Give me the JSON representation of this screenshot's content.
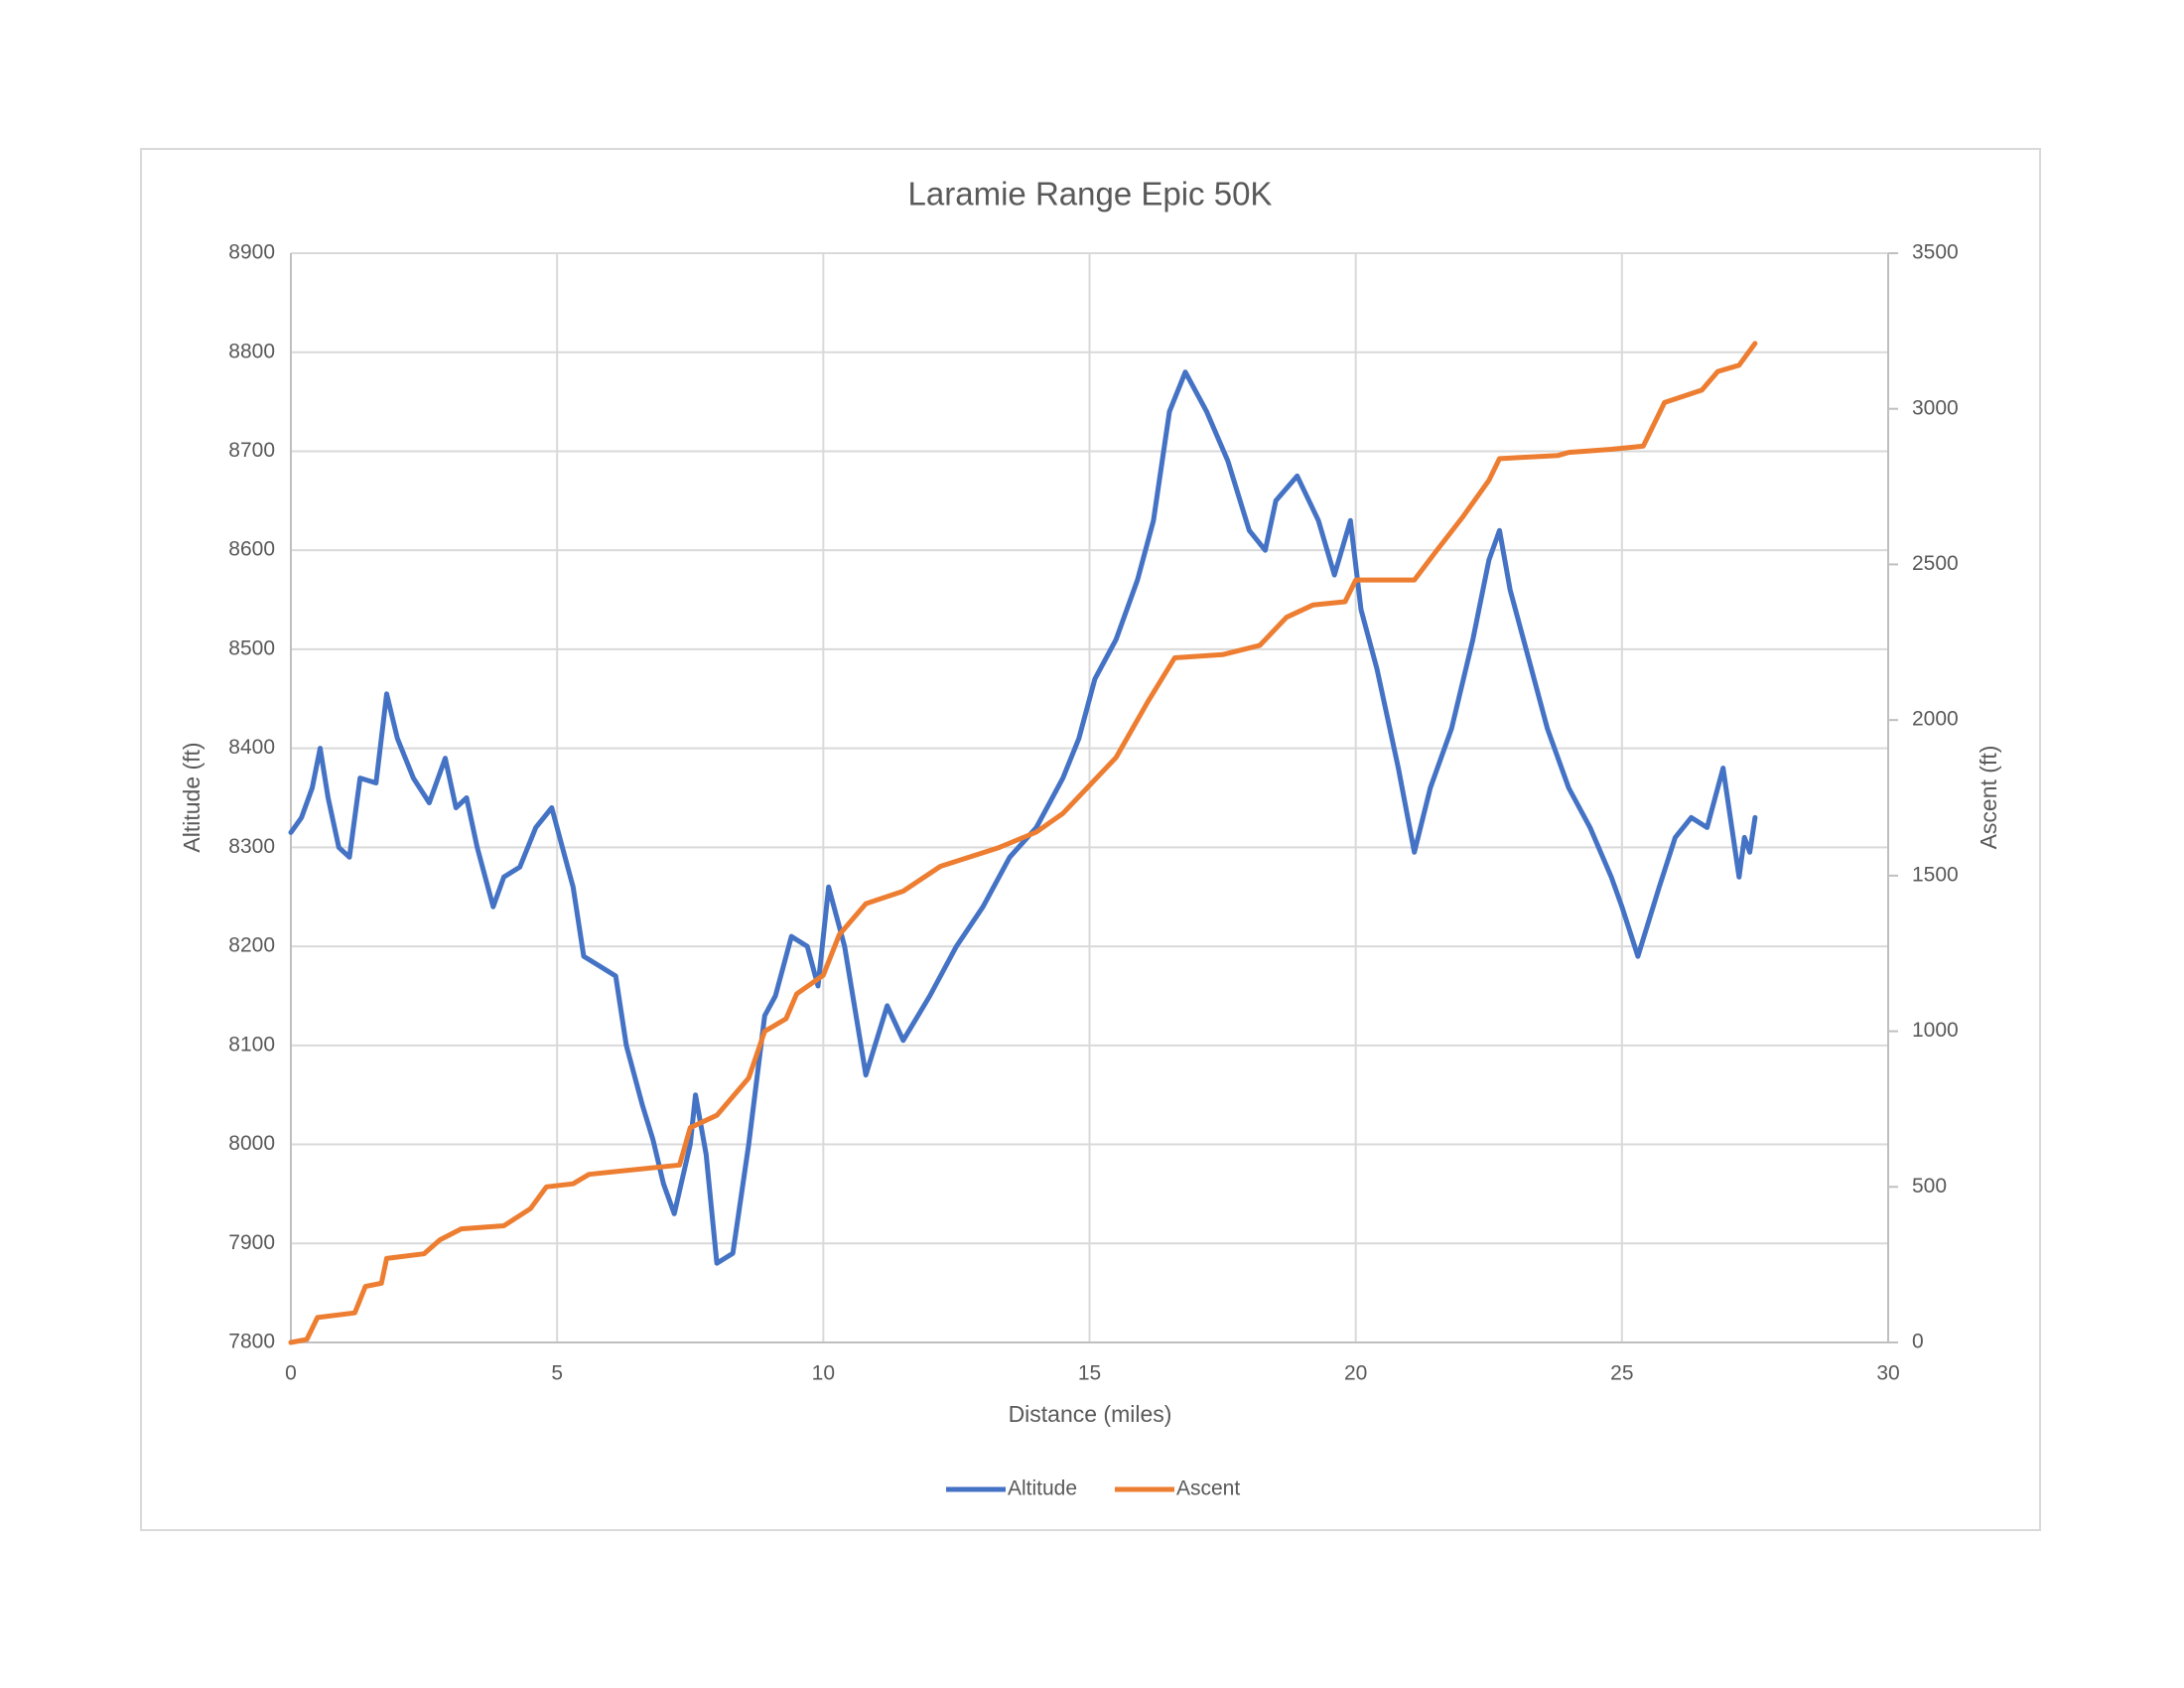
{
  "chart_data": {
    "type": "line",
    "title": "Laramie Range Epic 50K",
    "x_label": "Distance (miles)",
    "y_label": "Altitude (ft)",
    "y2_label": "Ascent (ft)",
    "xlim": [
      0,
      30
    ],
    "xticks": [
      0,
      5,
      10,
      15,
      20,
      25,
      30
    ],
    "ylim": [
      7800,
      8900
    ],
    "yticks": [
      7800,
      7900,
      8000,
      8100,
      8200,
      8300,
      8400,
      8500,
      8600,
      8700,
      8800,
      8900
    ],
    "y2lim": [
      0,
      3500
    ],
    "y2ticks": [
      0,
      500,
      1000,
      1500,
      2000,
      2500,
      3000,
      3500
    ],
    "grid": true,
    "legend": "bottom",
    "series": [
      {
        "name": "Altitude",
        "color": "#4472c4",
        "axis": "y",
        "x": [
          0,
          0.2,
          0.4,
          0.55,
          0.7,
          0.9,
          1.1,
          1.3,
          1.6,
          1.8,
          2.0,
          2.3,
          2.6,
          2.9,
          3.1,
          3.3,
          3.5,
          3.8,
          4.0,
          4.3,
          4.6,
          4.9,
          5.1,
          5.3,
          5.5,
          5.8,
          6.1,
          6.3,
          6.6,
          6.8,
          7.0,
          7.2,
          7.5,
          7.6,
          7.8,
          8.0,
          8.3,
          8.6,
          8.9,
          9.1,
          9.4,
          9.7,
          9.9,
          10.1,
          10.4,
          10.8,
          11.2,
          11.5,
          12.0,
          12.5,
          13.0,
          13.5,
          14.0,
          14.5,
          14.8,
          15.1,
          15.5,
          15.9,
          16.2,
          16.5,
          16.8,
          17.2,
          17.6,
          18.0,
          18.3,
          18.5,
          18.9,
          19.3,
          19.6,
          19.9,
          20.1,
          20.4,
          20.8,
          21.1,
          21.4,
          21.8,
          22.2,
          22.5,
          22.7,
          22.9,
          23.2,
          23.6,
          24.0,
          24.4,
          24.8,
          25.0,
          25.3,
          25.7,
          26.0,
          26.3,
          26.6,
          26.9,
          27.2,
          27.3,
          27.4,
          27.5
        ],
        "values": [
          8315,
          8330,
          8360,
          8400,
          8350,
          8300,
          8290,
          8370,
          8365,
          8455,
          8410,
          8370,
          8345,
          8390,
          8340,
          8350,
          8300,
          8240,
          8270,
          8280,
          8320,
          8340,
          8300,
          8260,
          8190,
          8180,
          8170,
          8100,
          8040,
          8005,
          7960,
          7930,
          8000,
          8050,
          7990,
          7880,
          7890,
          8000,
          8130,
          8150,
          8210,
          8200,
          8160,
          8260,
          8200,
          8070,
          8140,
          8105,
          8150,
          8200,
          8240,
          8290,
          8320,
          8370,
          8410,
          8470,
          8510,
          8570,
          8630,
          8740,
          8780,
          8740,
          8690,
          8620,
          8600,
          8650,
          8675,
          8630,
          8575,
          8630,
          8540,
          8480,
          8380,
          8295,
          8360,
          8420,
          8510,
          8590,
          8620,
          8560,
          8500,
          8420,
          8360,
          8320,
          8270,
          8240,
          8190,
          8260,
          8310,
          8330,
          8320,
          8380,
          8270,
          8310,
          8295,
          8330
        ]
      },
      {
        "name": "Ascent",
        "color": "#ed7d31",
        "axis": "y2",
        "x": [
          0,
          0.3,
          0.5,
          1.2,
          1.4,
          1.7,
          1.8,
          2.5,
          2.8,
          3.2,
          4.0,
          4.5,
          4.8,
          5.3,
          5.6,
          7.3,
          7.5,
          8.0,
          8.6,
          8.9,
          9.3,
          9.5,
          10.0,
          10.3,
          10.8,
          11.5,
          12.2,
          13.3,
          14.0,
          14.5,
          15.0,
          15.5,
          16.1,
          16.6,
          17.5,
          18.2,
          18.7,
          19.2,
          19.8,
          20.0,
          21.1,
          21.5,
          22.0,
          22.5,
          22.7,
          23.8,
          24.0,
          24.8,
          25.4,
          25.8,
          26.5,
          26.8,
          27.2,
          27.5
        ],
        "values": [
          0,
          10,
          80,
          95,
          180,
          190,
          270,
          285,
          330,
          365,
          375,
          430,
          500,
          510,
          540,
          570,
          690,
          730,
          850,
          1000,
          1040,
          1120,
          1180,
          1310,
          1410,
          1450,
          1530,
          1590,
          1640,
          1700,
          1790,
          1880,
          2060,
          2200,
          2210,
          2240,
          2330,
          2370,
          2380,
          2450,
          2450,
          2540,
          2650,
          2770,
          2840,
          2850,
          2860,
          2870,
          2880,
          3020,
          3060,
          3120,
          3140,
          3210
        ]
      }
    ]
  }
}
